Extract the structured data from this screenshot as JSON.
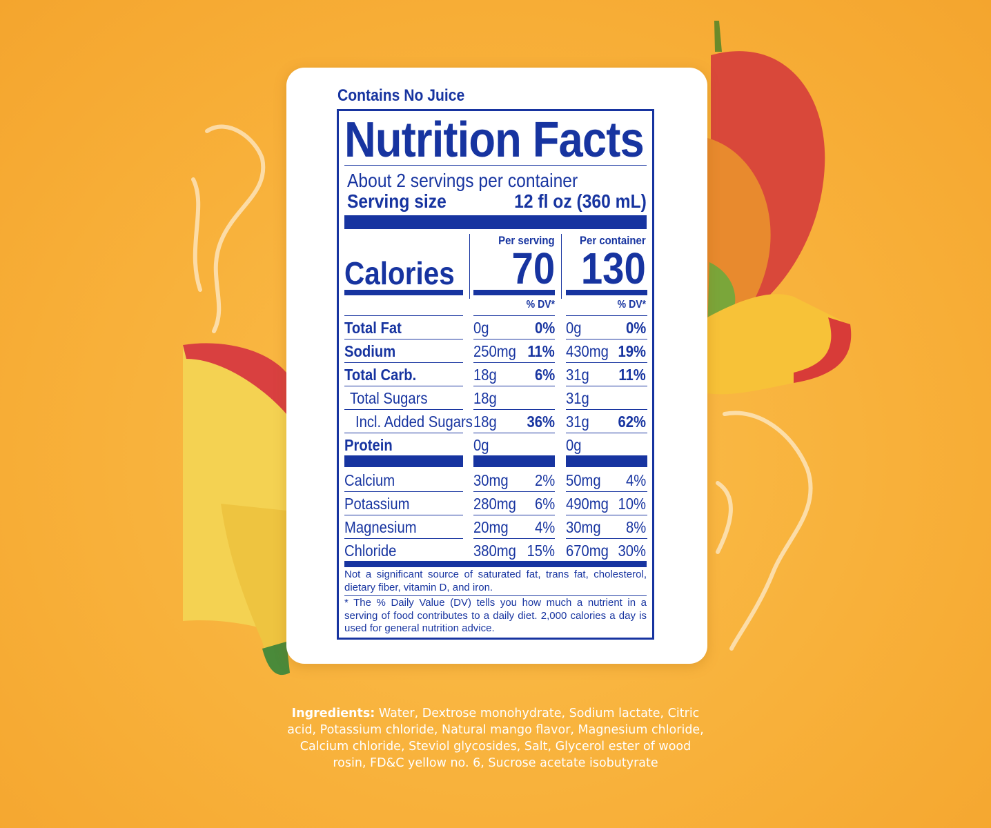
{
  "label": {
    "note": "Contains No Juice",
    "title": "Nutrition Facts",
    "servings": "About 2 servings per container",
    "serving_size_label": "Serving size",
    "serving_size": "12 fl oz (360 mL)",
    "per_serving": "Per serving",
    "per_container": "Per container",
    "calories_label": "Calories",
    "calories_serving": "70",
    "calories_container": "130",
    "dv_header": "% DV*",
    "nutrients": [
      [
        "Total Fat",
        "0g",
        "0%",
        "0g",
        "0%"
      ],
      [
        "Sodium",
        "250mg",
        "11%",
        "430mg",
        "19%"
      ],
      [
        "Total Carb.",
        "18g",
        "6%",
        "31g",
        "11%"
      ],
      [
        "Total Sugars",
        "18g",
        "31g"
      ],
      [
        "Incl. Added Sugars",
        "18g",
        "36%",
        "31g",
        "62%"
      ],
      [
        "Protein",
        "0g",
        "0g"
      ]
    ],
    "minerals": [
      [
        "Calcium",
        "30mg",
        "2%",
        "50mg",
        "4%"
      ],
      [
        "Potassium",
        "280mg",
        "6%",
        "490mg",
        "10%"
      ],
      [
        "Magnesium",
        "20mg",
        "4%",
        "30mg",
        "8%"
      ],
      [
        "Chloride",
        "380mg",
        "15%",
        "670mg",
        "30%"
      ]
    ],
    "footnote_sources": "Not a significant source of saturated fat, trans fat, cholesterol, dietary fiber, vitamin D, and iron.",
    "footnote_dv": "* The % Daily Value (DV) tells you how much a nutrient in a serving of food contributes to a daily diet. 2,000 calories a day is used for general nutrition advice."
  },
  "ingredients": {
    "label": "Ingredients:",
    "text": "Water, Dextrose monohydrate, Sodium lactate, Citric acid, Potassium chloride, Natural mango flavor, Magnesium chloride, Calcium chloride, Steviol glycosides, Salt, Glycerol ester of wood rosin, FD&C yellow no. 6, Sucrose acetate isobutyrate"
  }
}
